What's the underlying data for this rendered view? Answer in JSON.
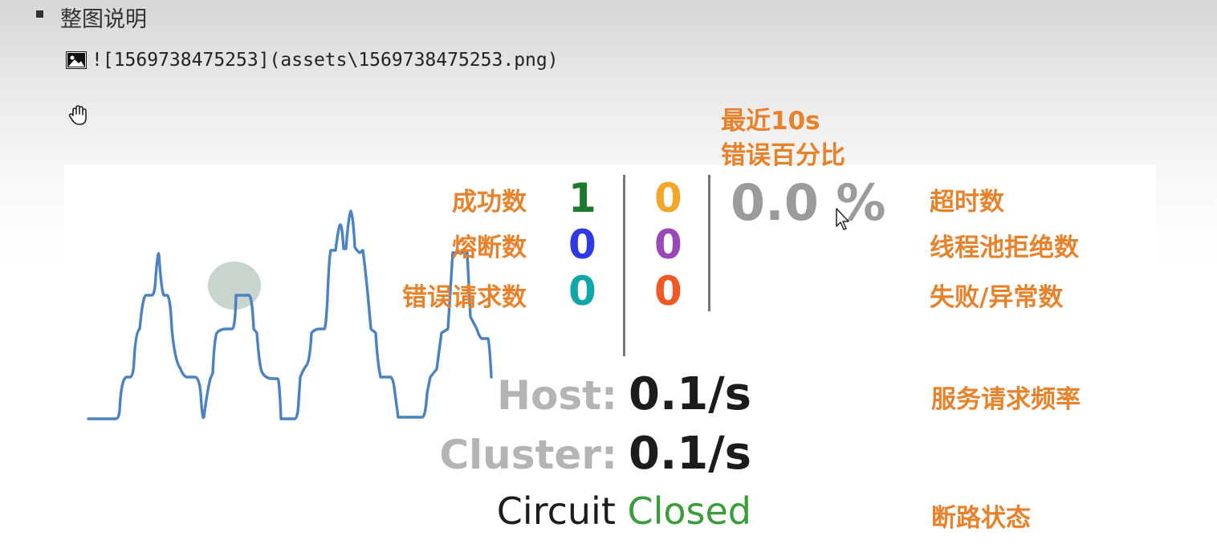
{
  "heading": "整图说明",
  "image_link": "![1569738475253](assets\\1569738475253.png)",
  "annotations": {
    "recent": "最近10s",
    "error_pct": "错误百分比",
    "success": "成功数",
    "short_circuit": "熔断数",
    "bad_request": "错误请求数",
    "timeout": "超时数",
    "rejected": "线程池拒绝数",
    "failure": "失败/异常数",
    "rate": "服务请求频率",
    "circuit_state": "断路状态"
  },
  "counts": {
    "success": "1",
    "timeout": "0",
    "short_circuit": "0",
    "rejected": "0",
    "bad_request": "0",
    "failure": "0"
  },
  "error_percent": "0.0 %",
  "host": {
    "label": "Host:",
    "value": "0.1/s"
  },
  "cluster": {
    "label": "Cluster:",
    "value": "0.1/s"
  },
  "circuit": {
    "label": "Circuit",
    "status": "Closed"
  },
  "colors": {
    "success": "#1d7a2c",
    "timeout": "#f4a62a",
    "short_circuit": "#2f39e6",
    "rejected": "#9a47b7",
    "bad_request": "#11a6a8",
    "failure": "#f05a22",
    "annotation": "#e8822a",
    "closed": "#3a9d3a"
  }
}
